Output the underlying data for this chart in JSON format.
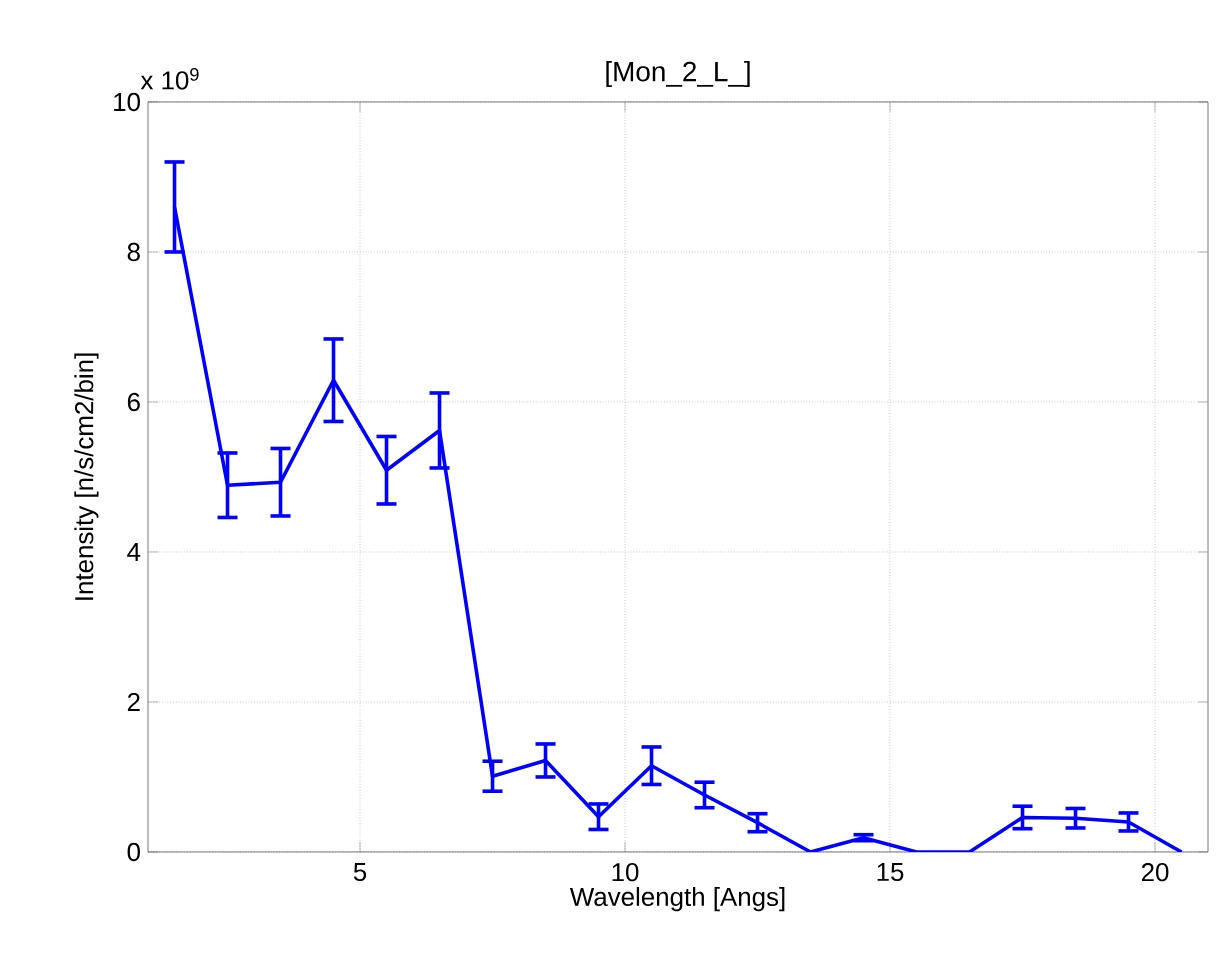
{
  "chart_data": {
    "type": "line",
    "title": "[Mon_2_L_]",
    "xlabel": "Wavelength [Angs]",
    "ylabel": "Intensity [n/s/cm2/bin]",
    "annotations": [
      "x 10$^{9}$"
    ],
    "x": [
      1.5,
      2.5,
      3.5,
      4.5,
      5.5,
      6.5,
      7.5,
      8.5,
      9.5,
      10.5,
      11.5,
      12.5,
      13.5,
      14.5,
      15.5,
      16.5,
      17.5,
      18.5,
      19.5,
      20.5
    ],
    "series": [
      {
        "color": "#0000ff",
        "values": [
          8.6,
          4.89,
          4.93,
          6.29,
          5.09,
          5.62,
          1.01,
          1.22,
          0.47,
          1.15,
          0.76,
          0.39,
          0,
          0.19,
          0,
          0,
          0.46,
          0.45,
          0.4,
          0
        ],
        "errors": [
          0.6,
          0.43,
          0.45,
          0.55,
          0.45,
          0.5,
          0.2,
          0.22,
          0.17,
          0.25,
          0.17,
          0.12,
          null,
          0.04,
          null,
          null,
          0.15,
          0.13,
          0.12,
          null
        ]
      }
    ],
    "xlim": [
      1,
      21
    ],
    "ylim": [
      0,
      10
    ],
    "xticks": [
      5,
      10,
      15,
      20
    ],
    "yticks": [
      0,
      2,
      4,
      6,
      8,
      10
    ],
    "grid": true,
    "legend": false,
    "marker": "none",
    "line_style": "solid"
  }
}
